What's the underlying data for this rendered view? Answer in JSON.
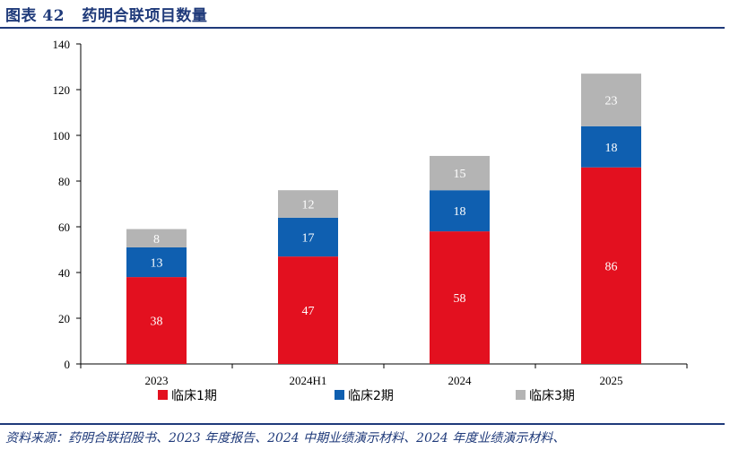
{
  "figure": {
    "label": "图表 42",
    "title": "药明合联项目数量",
    "source": "资料来源：药明合联招股书、2023 年度报告、2024 中期业绩演示材料、2024 年度业绩演示材料、"
  },
  "colors": {
    "header": "#1f3a7a",
    "phase1": "#e3101f",
    "phase2": "#0f5fb0",
    "phase3": "#b4b4b4"
  },
  "chart_data": {
    "type": "bar",
    "stacked": true,
    "categories": [
      "2023",
      "2024H1",
      "2024",
      "2025"
    ],
    "series": [
      {
        "name": "临床1期",
        "values": [
          38,
          47,
          58,
          86
        ],
        "color": "#e3101f"
      },
      {
        "name": "临床2期",
        "values": [
          13,
          17,
          18,
          18
        ],
        "color": "#0f5fb0"
      },
      {
        "name": "临床3期",
        "values": [
          8,
          12,
          15,
          23
        ],
        "color": "#b4b4b4"
      }
    ],
    "ylim": [
      0,
      140
    ],
    "yticks": [
      0,
      20,
      40,
      60,
      80,
      100,
      120,
      140
    ],
    "grid": false,
    "legend": "bottom",
    "xlabel": "",
    "ylabel": ""
  }
}
